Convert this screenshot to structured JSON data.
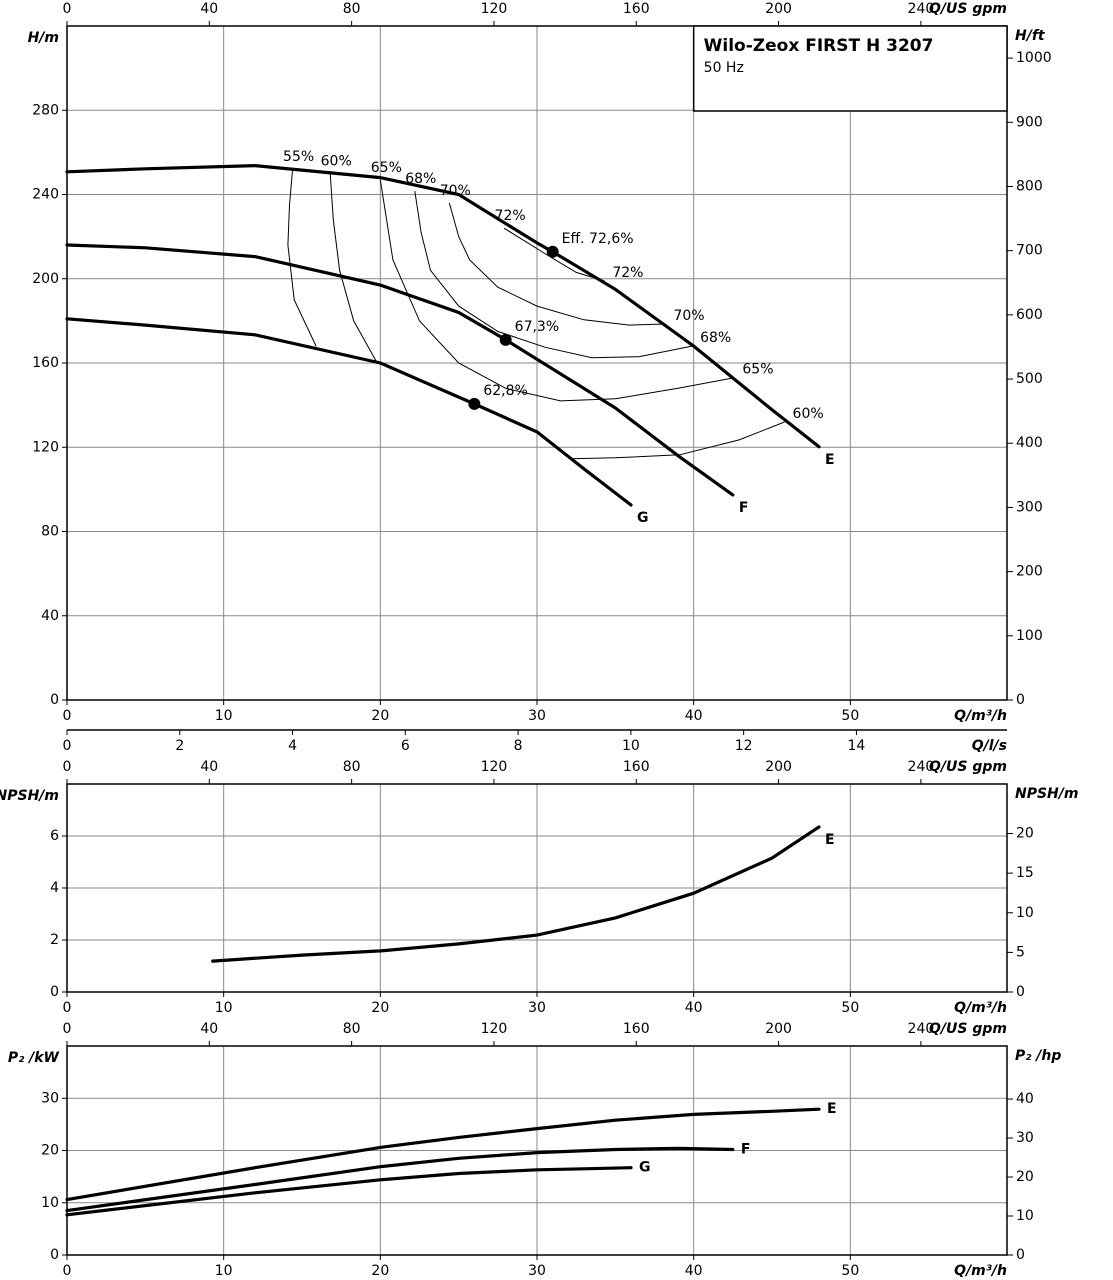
{
  "chart_data": [
    {
      "type": "line",
      "title": "Wilo-Zeox FIRST H 3207",
      "subtitle": "50 Hz",
      "xlabel": "Q/m³/h",
      "ylabel": "H/m",
      "y2label": "H/ft",
      "x2label": "Q/US gpm",
      "x3label": "Q/l/s",
      "xlim": [
        0,
        60
      ],
      "xticks": [
        0,
        10,
        20,
        30,
        40,
        50
      ],
      "x2lim": [
        0,
        264.2
      ],
      "x2ticks": [
        0,
        40,
        80,
        120,
        160,
        200,
        240
      ],
      "x3lim": [
        0,
        16.67
      ],
      "x3ticks": [
        0,
        2,
        4,
        6,
        8,
        10,
        12,
        14
      ],
      "ylim": [
        0,
        320
      ],
      "yticks": [
        0,
        40,
        80,
        120,
        160,
        200,
        240,
        280
      ],
      "y2lim": [
        0,
        1050
      ],
      "y2ticks": [
        0,
        100,
        200,
        300,
        400,
        500,
        600,
        700,
        800,
        900,
        1000
      ],
      "grid": true,
      "color": "#000000",
      "series": [
        {
          "name": "E",
          "x": [
            0,
            5,
            12,
            20,
            25,
            30,
            31,
            35,
            40,
            45,
            48
          ],
          "values": [
            250.8,
            252.2,
            253.7,
            248,
            240,
            217,
            212.8,
            195,
            168,
            137.8,
            120.2
          ],
          "bep": {
            "x": 31,
            "y": 212.8,
            "label": "Eff. 72,6%"
          }
        },
        {
          "name": "F",
          "x": [
            0,
            5,
            12,
            20,
            25,
            28,
            35,
            39,
            42.5
          ],
          "values": [
            216,
            214.7,
            210.5,
            197,
            184,
            171,
            138.7,
            116,
            97.4
          ],
          "bep": {
            "x": 28,
            "y": 171,
            "label": "67,3%"
          }
        },
        {
          "name": "G",
          "x": [
            0,
            5,
            12,
            20,
            26,
            30,
            33,
            36
          ],
          "values": [
            181,
            178,
            173.4,
            160,
            140.6,
            127.3,
            109.7,
            92.6
          ],
          "bep": {
            "x": 26,
            "y": 140.6,
            "label": "62,8%"
          }
        }
      ],
      "efficiency_curves": [
        {
          "label": "55%",
          "label_at": [
            "start"
          ],
          "x": [
            14.4,
            14.2,
            14.1,
            14.5,
            15.9
          ],
          "y": [
            252,
            235,
            216,
            190,
            168
          ]
        },
        {
          "label": "60%",
          "label_at": [
            "start"
          ],
          "x": [
            16.8,
            17.0,
            17.4,
            18.3,
            19.8
          ],
          "y": [
            250,
            228,
            204,
            180,
            160
          ]
        },
        {
          "label": "65%",
          "label_at": [
            "start",
            "end"
          ],
          "x": [
            20.0,
            20.4,
            20.8,
            22.5,
            25.0,
            28.0,
            31.5,
            35.0,
            39.0,
            42.6
          ],
          "y": [
            247,
            228,
            209,
            180,
            160,
            148,
            142,
            143,
            148,
            153
          ]
        },
        {
          "label": "68%",
          "label_at": [
            "start",
            "end"
          ],
          "x": [
            22.2,
            22.6,
            23.2,
            25.0,
            27.5,
            30.5,
            33.5,
            36.5,
            39.9
          ],
          "y": [
            241.6,
            222,
            204,
            187,
            175,
            167.5,
            162.5,
            163,
            168
          ]
        },
        {
          "label": "70%",
          "label_at": [
            "start",
            "end"
          ],
          "x": [
            24.4,
            25.0,
            25.7,
            27.5,
            30.0,
            33.0,
            35.9,
            38.2
          ],
          "y": [
            236,
            220,
            209,
            196,
            187,
            180.5,
            178,
            178.5
          ]
        },
        {
          "label": "72%",
          "label_at": [
            "start",
            "end"
          ],
          "x": [
            27.9,
            30.5,
            32.5,
            34.3
          ],
          "y": [
            224,
            212,
            203,
            199
          ]
        },
        {
          "label": "60%",
          "label_at": [
            "end"
          ],
          "x": [
            32.1,
            35.0,
            39.1,
            42.9,
            45.8
          ],
          "y": [
            114.5,
            115,
            116.4,
            123.5,
            132
          ]
        }
      ]
    },
    {
      "type": "line",
      "xlabel": "Q/m³/h",
      "ylabel": "NPSH/m",
      "y2label": "NPSH/m",
      "x2label": "Q/US gpm",
      "xlim": [
        0,
        60
      ],
      "xticks": [
        0,
        10,
        20,
        30,
        40,
        50
      ],
      "x2lim": [
        0,
        264.2
      ],
      "x2ticks": [
        0,
        40,
        80,
        120,
        160,
        200,
        240
      ],
      "ylim": [
        0,
        8
      ],
      "yticks": [
        0,
        2,
        4,
        6
      ],
      "y2lim": [
        0,
        26.25
      ],
      "y2ticks": [
        0,
        5,
        10,
        15,
        20
      ],
      "grid": true,
      "color": "#000000",
      "series": [
        {
          "name": "E",
          "x": [
            9.3,
            15,
            20,
            25,
            30,
            35,
            40,
            45,
            48
          ],
          "values": [
            1.19,
            1.42,
            1.58,
            1.85,
            2.19,
            2.85,
            3.8,
            5.15,
            6.35
          ]
        }
      ]
    },
    {
      "type": "line",
      "xlabel": "Q/m³/h",
      "ylabel": "P₂ /kW",
      "y2label": "P₂ /hp",
      "x2label": "Q/US gpm",
      "xlim": [
        0,
        60
      ],
      "xticks": [
        0,
        10,
        20,
        30,
        40,
        50
      ],
      "x2lim": [
        0,
        264.2
      ],
      "x2ticks": [
        0,
        40,
        80,
        120,
        160,
        200,
        240
      ],
      "ylim": [
        0,
        40
      ],
      "yticks": [
        0,
        10,
        20,
        30
      ],
      "y2lim": [
        0,
        53.6
      ],
      "y2ticks": [
        0,
        10,
        20,
        30,
        40
      ],
      "grid": true,
      "color": "#000000",
      "series": [
        {
          "name": "E",
          "x": [
            0,
            12,
            20,
            25,
            30,
            35,
            40,
            45,
            48
          ],
          "values": [
            10.6,
            16.7,
            20.6,
            22.5,
            24.2,
            25.8,
            26.9,
            27.5,
            27.9
          ]
        },
        {
          "name": "F",
          "x": [
            0,
            12,
            20,
            25,
            30,
            35,
            39,
            42.5
          ],
          "values": [
            8.5,
            13.5,
            16.9,
            18.5,
            19.6,
            20.2,
            20.4,
            20.2
          ]
        },
        {
          "name": "G",
          "x": [
            0,
            12,
            20,
            25,
            30,
            33,
            36
          ],
          "values": [
            7.7,
            11.9,
            14.4,
            15.6,
            16.3,
            16.5,
            16.7
          ]
        }
      ]
    }
  ]
}
